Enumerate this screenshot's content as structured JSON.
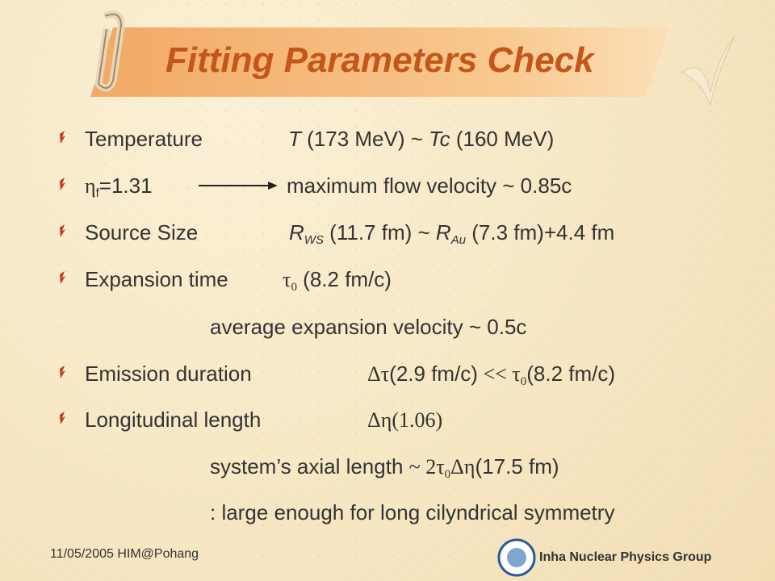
{
  "title": "Fitting Parameters Check",
  "lines": [
    {
      "label": "Temperature",
      "detail": [
        "T",
        " (173 MeV) ~ ",
        "Tc",
        " (160 MeV)"
      ]
    },
    {
      "label": [
        "η",
        "f",
        "=1.31"
      ],
      "detail": [
        "maximum flow velocity ~ 0.85c"
      ]
    },
    {
      "label": "Source Size",
      "detail": [
        "R",
        "WS",
        " (11.7 fm) ~ ",
        "R",
        "Au",
        " (7.3 fm)+4.4 fm"
      ]
    },
    {
      "label": "Expansion time",
      "detail": [
        "τ",
        "0",
        " (8.2 fm/c)"
      ]
    },
    {
      "label": "average expansion velocity ~ 0.5c"
    },
    {
      "label": "Emission duration",
      "detail": [
        "Δτ",
        "(2.9 fm/c)",
        " << ",
        "τ",
        "0",
        "(8.2 fm/c)"
      ]
    },
    {
      "label": "Longitudinal length",
      "detail": [
        "Δη",
        "(1.06)"
      ]
    },
    {
      "label": [
        "system’s axial length ",
        "~ 2τ",
        "0",
        "Δη",
        "(17.5 fm)"
      ]
    },
    {
      "label": ": large enough for long cilyndrical symmetry"
    }
  ],
  "footer": {
    "left": "11/05/2005 HIM@Pohang",
    "right": "Inha Nuclear Physics Group"
  }
}
